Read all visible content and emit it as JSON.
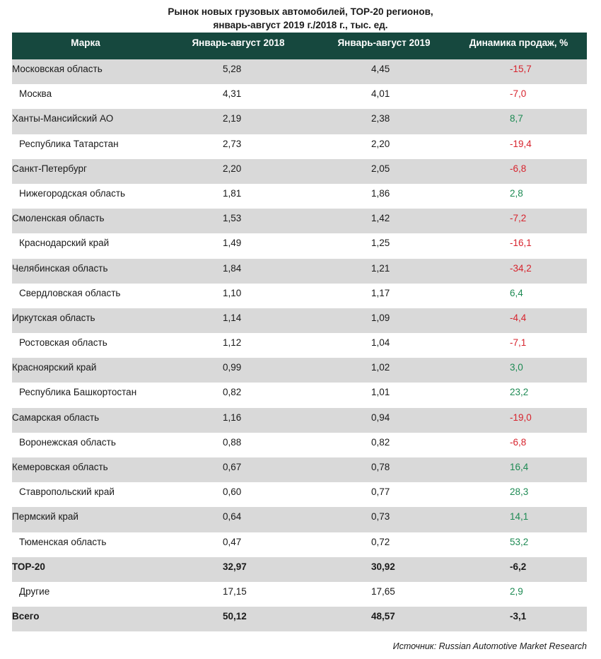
{
  "title": {
    "line1": "Рынок новых грузовых автомобилей, ТОР-20 регионов,",
    "line2": "январь-август 2019 г./2018 г., тыс. ед."
  },
  "table": {
    "headers": [
      "Марка",
      "Январь-август 2018",
      "Январь-август 2019",
      "Динамика продаж, %"
    ],
    "rows": [
      {
        "name": "Московская область",
        "v2018": "5,28",
        "v2019": "4,45",
        "dyn": "-15,7",
        "trend": "neg",
        "indent": false,
        "bold": false
      },
      {
        "name": "Москва",
        "v2018": "4,31",
        "v2019": "4,01",
        "dyn": "-7,0",
        "trend": "neg",
        "indent": true,
        "bold": false
      },
      {
        "name": "Ханты-Мансийский АО",
        "v2018": "2,19",
        "v2019": "2,38",
        "dyn": "8,7",
        "trend": "pos",
        "indent": false,
        "bold": false
      },
      {
        "name": "Республика Татарстан",
        "v2018": "2,73",
        "v2019": "2,20",
        "dyn": "-19,4",
        "trend": "neg",
        "indent": true,
        "bold": false
      },
      {
        "name": "Санкт-Петербург",
        "v2018": "2,20",
        "v2019": "2,05",
        "dyn": "-6,8",
        "trend": "neg",
        "indent": false,
        "bold": false
      },
      {
        "name": "Нижегородская область",
        "v2018": "1,81",
        "v2019": "1,86",
        "dyn": "2,8",
        "trend": "pos",
        "indent": true,
        "bold": false
      },
      {
        "name": "Смоленская область",
        "v2018": "1,53",
        "v2019": "1,42",
        "dyn": "-7,2",
        "trend": "neg",
        "indent": false,
        "bold": false
      },
      {
        "name": "Краснодарский край",
        "v2018": "1,49",
        "v2019": "1,25",
        "dyn": "-16,1",
        "trend": "neg",
        "indent": true,
        "bold": false
      },
      {
        "name": "Челябинская область",
        "v2018": "1,84",
        "v2019": "1,21",
        "dyn": "-34,2",
        "trend": "neg",
        "indent": false,
        "bold": false
      },
      {
        "name": "Свердловская область",
        "v2018": "1,10",
        "v2019": "1,17",
        "dyn": "6,4",
        "trend": "pos",
        "indent": true,
        "bold": false
      },
      {
        "name": "Иркутская область",
        "v2018": "1,14",
        "v2019": "1,09",
        "dyn": "-4,4",
        "trend": "neg",
        "indent": false,
        "bold": false
      },
      {
        "name": "Ростовская область",
        "v2018": "1,12",
        "v2019": "1,04",
        "dyn": "-7,1",
        "trend": "neg",
        "indent": true,
        "bold": false
      },
      {
        "name": "Красноярский край",
        "v2018": "0,99",
        "v2019": "1,02",
        "dyn": "3,0",
        "trend": "pos",
        "indent": false,
        "bold": false
      },
      {
        "name": "Республика Башкортостан",
        "v2018": "0,82",
        "v2019": "1,01",
        "dyn": "23,2",
        "trend": "pos",
        "indent": true,
        "bold": false
      },
      {
        "name": "Самарская область",
        "v2018": "1,16",
        "v2019": "0,94",
        "dyn": "-19,0",
        "trend": "neg",
        "indent": false,
        "bold": false
      },
      {
        "name": "Воронежская область",
        "v2018": "0,88",
        "v2019": "0,82",
        "dyn": "-6,8",
        "trend": "neg",
        "indent": true,
        "bold": false
      },
      {
        "name": "Кемеровская область",
        "v2018": "0,67",
        "v2019": "0,78",
        "dyn": "16,4",
        "trend": "pos",
        "indent": false,
        "bold": false
      },
      {
        "name": "Ставропольский край",
        "v2018": "0,60",
        "v2019": "0,77",
        "dyn": "28,3",
        "trend": "pos",
        "indent": true,
        "bold": false
      },
      {
        "name": "Пермский край",
        "v2018": "0,64",
        "v2019": "0,73",
        "dyn": "14,1",
        "trend": "pos",
        "indent": false,
        "bold": false
      },
      {
        "name": "Тюменская область",
        "v2018": "0,47",
        "v2019": "0,72",
        "dyn": "53,2",
        "trend": "pos",
        "indent": true,
        "bold": false
      },
      {
        "name": "ТОР-20",
        "v2018": "32,97",
        "v2019": "30,92",
        "dyn": "-6,2",
        "trend": "neu",
        "indent": false,
        "bold": true
      },
      {
        "name": "Другие",
        "v2018": "17,15",
        "v2019": "17,65",
        "dyn": "2,9",
        "trend": "pos",
        "indent": true,
        "bold": false
      },
      {
        "name": "Всего",
        "v2018": "50,12",
        "v2019": "48,57",
        "dyn": "-3,1",
        "trend": "neu",
        "indent": false,
        "bold": true
      }
    ]
  },
  "source": "Источник: Russian Automotive Market Research",
  "colors": {
    "header_bg": "#16483e",
    "row_shade": "#d9d9d9",
    "negative": "#d7232d",
    "positive": "#1d8a53"
  }
}
